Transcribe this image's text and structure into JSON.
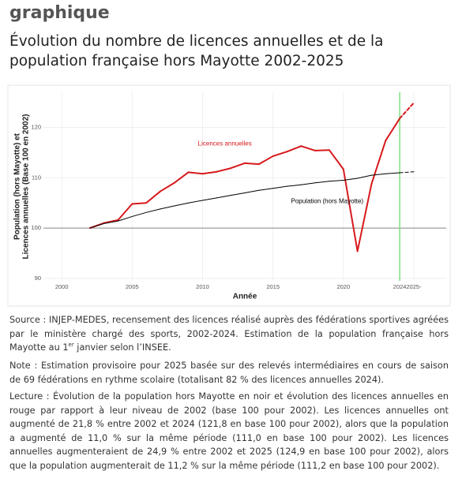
{
  "header": {
    "label": "graphique",
    "title": "Évolution du nombre de licences annuelles et de la population française hors Mayotte 2002-2025"
  },
  "chart_data": {
    "type": "line",
    "x": [
      2002,
      2003,
      2004,
      2005,
      2006,
      2007,
      2008,
      2009,
      2010,
      2011,
      2012,
      2013,
      2014,
      2015,
      2016,
      2017,
      2018,
      2019,
      2020,
      2021,
      2022,
      2023,
      2024,
      2025
    ],
    "series": [
      {
        "name": "Licences annuelles",
        "color": "#d7191c",
        "values": [
          100,
          101,
          101.6,
          104.8,
          105,
          107.3,
          109,
          111.1,
          110.8,
          111.2,
          111.9,
          112.9,
          112.7,
          114.3,
          115.2,
          116.3,
          115.4,
          115.5,
          111.7,
          95.4,
          108.8,
          117.4,
          121.8,
          124.9
        ]
      },
      {
        "name": "Population (hors Mayotte)",
        "color": "#000000",
        "values": [
          100,
          100.9,
          101.4,
          102.3,
          103.1,
          103.8,
          104.4,
          105,
          105.5,
          106,
          106.5,
          107,
          107.5,
          107.9,
          108.3,
          108.6,
          109,
          109.3,
          109.5,
          109.9,
          110.5,
          110.8,
          111,
          111.2
        ]
      }
    ],
    "dashed_from": 2024,
    "xlim": [
      1998.7,
      2027.3
    ],
    "xticks": [
      2000,
      2005,
      2010,
      2015,
      2020,
      2024,
      {
        "value": 2025,
        "label": "2025-"
      }
    ],
    "ylim": [
      89.5,
      127
    ],
    "yticks": [
      90,
      100,
      110,
      120
    ],
    "grid": true,
    "hline": 100,
    "vline": 2024,
    "vline_color": "#7ee07e",
    "xlabel": "Année",
    "ylabel": [
      "Population (hors Mayotte) et",
      "Licences annuelles (Base 100 en 2002)"
    ]
  },
  "notes": {
    "source": [
      "Source : INJEP-MEDES, recensement des licences réalisé auprès des fédérations sportives agréées par le ministère chargé des sports, 2002-2024. Estimation de la population française hors Mayotte au 1",
      "er",
      " janvier selon l’INSEE."
    ],
    "note": "Note : Estimation provisoire pour 2025 basée sur des relevés intermédiaires en cours de saison de 69 fédérations en rythme scolaire (totalisant 82 % des licences annuelles 2024).",
    "lecture": "Lecture : Évolution de la population hors Mayotte en noir et évolution des licences annuelles en rouge par rapport à leur niveau de 2002 (base 100 pour 2002). Les licences annuelles ont augmenté de 21,8 % entre 2002 et 2024 (121,8 en base 100 pour 2002), alors que la population a augmenté de 11,0 % sur la même période (111,0 en base 100 pour 2002). Les licences annuelles augmenteraient de 24,9 % entre 2002 et 2025 (124,9 en base 100 pour 2002), alors que la population augmenterait de 11,2 % sur la même période (111,2 en base 100 pour 2002)."
  }
}
